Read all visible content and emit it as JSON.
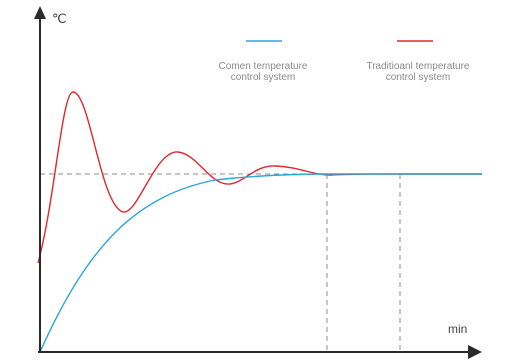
{
  "chart_data": {
    "type": "line",
    "ylabel": "℃",
    "xlabel": "min",
    "grid": false,
    "legend_placement": "top-right",
    "setpoint_reference": true,
    "settling_markers": true,
    "series": [
      {
        "name": "Comen temperature control system",
        "name_lines": [
          "Comen temperature",
          "control system"
        ],
        "color": "#29A8D8"
      },
      {
        "name": "Traditioanl temperature control system",
        "name_lines": [
          "Traditioanl temperature",
          "control system"
        ],
        "color": "#E0282F"
      }
    ]
  }
}
